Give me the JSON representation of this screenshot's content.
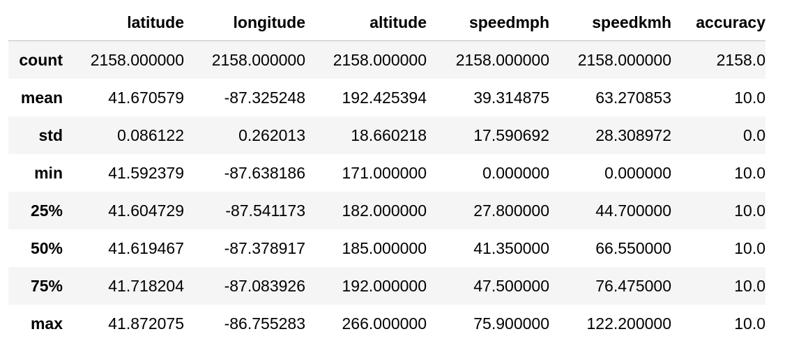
{
  "table": {
    "columns": [
      "latitude",
      "longitude",
      "altitude",
      "speedmph",
      "speedkmh",
      "accuracy"
    ],
    "rows": [
      {
        "label": "count",
        "values": [
          "2158.000000",
          "2158.000000",
          "2158.000000",
          "2158.000000",
          "2158.000000",
          "2158.0"
        ]
      },
      {
        "label": "mean",
        "values": [
          "41.670579",
          "-87.325248",
          "192.425394",
          "39.314875",
          "63.270853",
          "10.0"
        ]
      },
      {
        "label": "std",
        "values": [
          "0.086122",
          "0.262013",
          "18.660218",
          "17.590692",
          "28.308972",
          "0.0"
        ]
      },
      {
        "label": "min",
        "values": [
          "41.592379",
          "-87.638186",
          "171.000000",
          "0.000000",
          "0.000000",
          "10.0"
        ]
      },
      {
        "label": "25%",
        "values": [
          "41.604729",
          "-87.541173",
          "182.000000",
          "27.800000",
          "44.700000",
          "10.0"
        ]
      },
      {
        "label": "50%",
        "values": [
          "41.619467",
          "-87.378917",
          "185.000000",
          "41.350000",
          "66.550000",
          "10.0"
        ]
      },
      {
        "label": "75%",
        "values": [
          "41.718204",
          "-87.083926",
          "192.000000",
          "47.500000",
          "76.475000",
          "10.0"
        ]
      },
      {
        "label": "max",
        "values": [
          "41.872075",
          "-86.755283",
          "266.000000",
          "75.900000",
          "122.200000",
          "10.0"
        ]
      }
    ]
  }
}
